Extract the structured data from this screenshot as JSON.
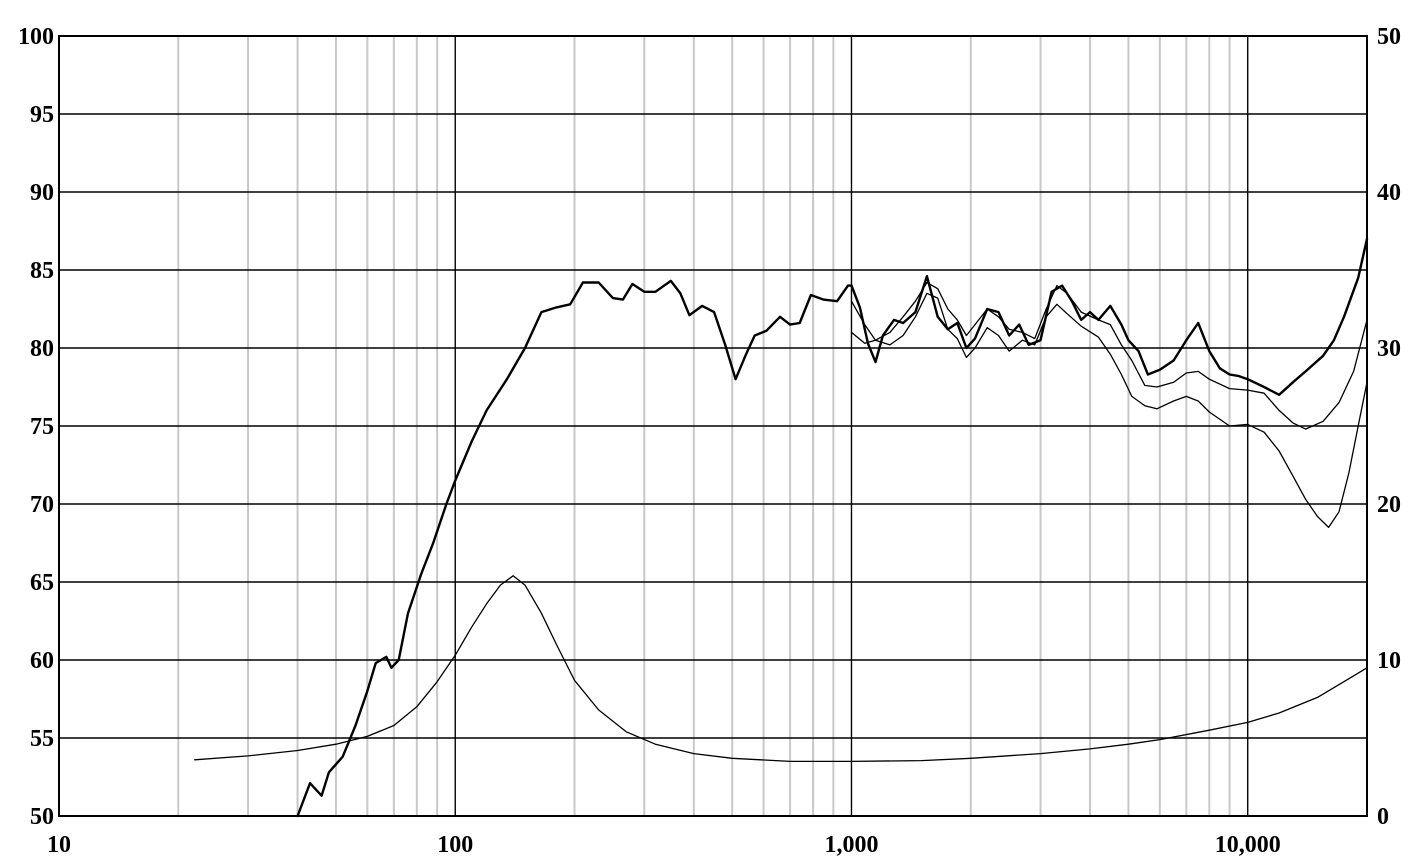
{
  "chart_data": {
    "type": "line",
    "title": "",
    "xlabel": "",
    "ylabel": "",
    "y2label": "",
    "x_scale": "log",
    "xlim": [
      10,
      20000
    ],
    "ylim": [
      50,
      100
    ],
    "y2lim": [
      0,
      50
    ],
    "grid": true,
    "legend": "none",
    "x_ticks": [
      {
        "value": 10,
        "label": "10"
      },
      {
        "value": 100,
        "label": "100"
      },
      {
        "value": 1000,
        "label": "1,000"
      },
      {
        "value": 10000,
        "label": "10,000"
      }
    ],
    "y_ticks": [
      100,
      95,
      90,
      85,
      80,
      75,
      70,
      65,
      60,
      55,
      50
    ],
    "y2_ticks": [
      50,
      40,
      30,
      20,
      10,
      0
    ],
    "series": [
      {
        "axis": "left",
        "stroke": "#000000",
        "width": 2.4,
        "points": [
          [
            40,
            50
          ],
          [
            43,
            52.1
          ],
          [
            46,
            51.3
          ],
          [
            48,
            52.8
          ],
          [
            52,
            53.8
          ],
          [
            56,
            55.8
          ],
          [
            60,
            58
          ],
          [
            63,
            59.8
          ],
          [
            67,
            60.2
          ],
          [
            69,
            59.5
          ],
          [
            72,
            60
          ],
          [
            76,
            63
          ],
          [
            82,
            65.5
          ],
          [
            88,
            67.5
          ],
          [
            95,
            70
          ],
          [
            100,
            71.5
          ],
          [
            110,
            74
          ],
          [
            120,
            76
          ],
          [
            135,
            78
          ],
          [
            150,
            80
          ],
          [
            165,
            82.3
          ],
          [
            180,
            82.6
          ],
          [
            195,
            82.8
          ],
          [
            210,
            84.2
          ],
          [
            230,
            84.2
          ],
          [
            250,
            83.2
          ],
          [
            265,
            83.1
          ],
          [
            280,
            84.1
          ],
          [
            300,
            83.6
          ],
          [
            320,
            83.6
          ],
          [
            350,
            84.3
          ],
          [
            370,
            83.5
          ],
          [
            390,
            82.1
          ],
          [
            420,
            82.7
          ],
          [
            450,
            82.3
          ],
          [
            480,
            80.2
          ],
          [
            510,
            78
          ],
          [
            540,
            79.5
          ],
          [
            570,
            80.8
          ],
          [
            610,
            81.1
          ],
          [
            660,
            82
          ],
          [
            700,
            81.5
          ],
          [
            740,
            81.6
          ],
          [
            790,
            83.4
          ],
          [
            850,
            83.1
          ],
          [
            920,
            83
          ],
          [
            980,
            84
          ],
          [
            1000,
            84
          ]
        ]
      },
      {
        "axis": "left",
        "stroke": "#000000",
        "width": 2.4,
        "points": [
          [
            1000,
            84
          ],
          [
            1050,
            82.6
          ],
          [
            1100,
            80.3
          ],
          [
            1150,
            79.1
          ],
          [
            1200,
            80.8
          ],
          [
            1280,
            81.8
          ],
          [
            1350,
            81.6
          ],
          [
            1450,
            82.3
          ],
          [
            1550,
            84.6
          ],
          [
            1650,
            82
          ],
          [
            1750,
            81.2
          ],
          [
            1850,
            81.6
          ],
          [
            1950,
            80
          ],
          [
            2050,
            80.6
          ],
          [
            2200,
            82.5
          ],
          [
            2350,
            82.3
          ],
          [
            2500,
            80.8
          ],
          [
            2650,
            81.5
          ],
          [
            2800,
            80.2
          ],
          [
            3000,
            80.5
          ],
          [
            3200,
            83.6
          ],
          [
            3400,
            84
          ],
          [
            3600,
            83
          ],
          [
            3800,
            81.8
          ],
          [
            4000,
            82.3
          ],
          [
            4200,
            81.8
          ],
          [
            4500,
            82.7
          ],
          [
            4800,
            81.5
          ],
          [
            5000,
            80.5
          ],
          [
            5300,
            79.8
          ],
          [
            5600,
            78.3
          ],
          [
            6000,
            78.6
          ],
          [
            6500,
            79.2
          ],
          [
            7000,
            80.5
          ],
          [
            7500,
            81.6
          ],
          [
            8000,
            79.8
          ],
          [
            8500,
            78.7
          ],
          [
            9000,
            78.3
          ],
          [
            9500,
            78.2
          ],
          [
            10000,
            78
          ],
          [
            11000,
            77.5
          ],
          [
            12000,
            77
          ],
          [
            13000,
            77.8
          ],
          [
            14000,
            78.5
          ],
          [
            15500,
            79.5
          ],
          [
            16500,
            80.5
          ],
          [
            17500,
            82
          ],
          [
            19000,
            84.5
          ],
          [
            20000,
            87
          ]
        ]
      },
      {
        "axis": "left",
        "stroke": "#000000",
        "width": 1.3,
        "points": [
          [
            1000,
            83
          ],
          [
            1080,
            81.5
          ],
          [
            1150,
            80.5
          ],
          [
            1250,
            81
          ],
          [
            1350,
            82
          ],
          [
            1450,
            83
          ],
          [
            1550,
            84.2
          ],
          [
            1650,
            83.8
          ],
          [
            1750,
            82.5
          ],
          [
            1850,
            81.8
          ],
          [
            1950,
            80.8
          ],
          [
            2050,
            81.5
          ],
          [
            2200,
            82.5
          ],
          [
            2350,
            82
          ],
          [
            2500,
            81.2
          ],
          [
            2700,
            81
          ],
          [
            2900,
            80.6
          ],
          [
            3100,
            82.5
          ],
          [
            3300,
            84
          ],
          [
            3500,
            83.5
          ],
          [
            3800,
            82.3
          ],
          [
            4200,
            81.8
          ],
          [
            4500,
            81.5
          ],
          [
            4800,
            80.2
          ],
          [
            5100,
            79.2
          ],
          [
            5500,
            77.6
          ],
          [
            5900,
            77.5
          ],
          [
            6500,
            77.8
          ],
          [
            7000,
            78.4
          ],
          [
            7500,
            78.5
          ],
          [
            8000,
            78
          ],
          [
            9000,
            77.4
          ],
          [
            10000,
            77.3
          ],
          [
            11000,
            77.1
          ],
          [
            12000,
            76
          ],
          [
            13000,
            75.2
          ],
          [
            14000,
            74.8
          ],
          [
            15500,
            75.3
          ],
          [
            17000,
            76.5
          ],
          [
            18500,
            78.5
          ],
          [
            20000,
            81.8
          ]
        ]
      },
      {
        "axis": "left",
        "stroke": "#000000",
        "width": 1.3,
        "points": [
          [
            1000,
            81
          ],
          [
            1080,
            80.3
          ],
          [
            1150,
            80.5
          ],
          [
            1250,
            80.2
          ],
          [
            1350,
            80.8
          ],
          [
            1450,
            82
          ],
          [
            1550,
            83.5
          ],
          [
            1650,
            83.2
          ],
          [
            1750,
            81.2
          ],
          [
            1850,
            80.6
          ],
          [
            1950,
            79.4
          ],
          [
            2050,
            80
          ],
          [
            2200,
            81.3
          ],
          [
            2350,
            80.8
          ],
          [
            2500,
            79.8
          ],
          [
            2700,
            80.5
          ],
          [
            2900,
            80.2
          ],
          [
            3100,
            82
          ],
          [
            3300,
            82.8
          ],
          [
            3500,
            82.2
          ],
          [
            3800,
            81.4
          ],
          [
            4200,
            80.7
          ],
          [
            4500,
            79.6
          ],
          [
            4800,
            78.3
          ],
          [
            5100,
            76.9
          ],
          [
            5500,
            76.3
          ],
          [
            5900,
            76.1
          ],
          [
            6500,
            76.6
          ],
          [
            7000,
            76.9
          ],
          [
            7500,
            76.6
          ],
          [
            8000,
            75.9
          ],
          [
            9000,
            75
          ],
          [
            10000,
            75.1
          ],
          [
            11000,
            74.6
          ],
          [
            12000,
            73.4
          ],
          [
            13000,
            71.8
          ],
          [
            14000,
            70.3
          ],
          [
            15000,
            69.2
          ],
          [
            16000,
            68.5
          ],
          [
            17000,
            69.5
          ],
          [
            18000,
            72
          ],
          [
            19000,
            75
          ],
          [
            20000,
            77.8
          ]
        ]
      },
      {
        "axis": "right",
        "stroke": "#000000",
        "width": 1.3,
        "points": [
          [
            22,
            3.6
          ],
          [
            30,
            3.85
          ],
          [
            40,
            4.2
          ],
          [
            50,
            4.6
          ],
          [
            60,
            5.1
          ],
          [
            70,
            5.8
          ],
          [
            80,
            7
          ],
          [
            90,
            8.6
          ],
          [
            100,
            10.3
          ],
          [
            110,
            12.1
          ],
          [
            120,
            13.6
          ],
          [
            130,
            14.8
          ],
          [
            140,
            15.4
          ],
          [
            150,
            14.8
          ],
          [
            165,
            13
          ],
          [
            180,
            11
          ],
          [
            200,
            8.7
          ],
          [
            230,
            6.8
          ],
          [
            270,
            5.4
          ],
          [
            320,
            4.6
          ],
          [
            400,
            4
          ],
          [
            500,
            3.7
          ],
          [
            700,
            3.5
          ],
          [
            1000,
            3.5
          ],
          [
            1500,
            3.55
          ],
          [
            2000,
            3.7
          ],
          [
            3000,
            4
          ],
          [
            4000,
            4.3
          ],
          [
            5000,
            4.6
          ],
          [
            6000,
            4.9
          ],
          [
            8000,
            5.5
          ],
          [
            10000,
            6
          ],
          [
            12000,
            6.6
          ],
          [
            15000,
            7.6
          ],
          [
            18000,
            8.8
          ],
          [
            20000,
            9.5
          ]
        ]
      }
    ]
  }
}
